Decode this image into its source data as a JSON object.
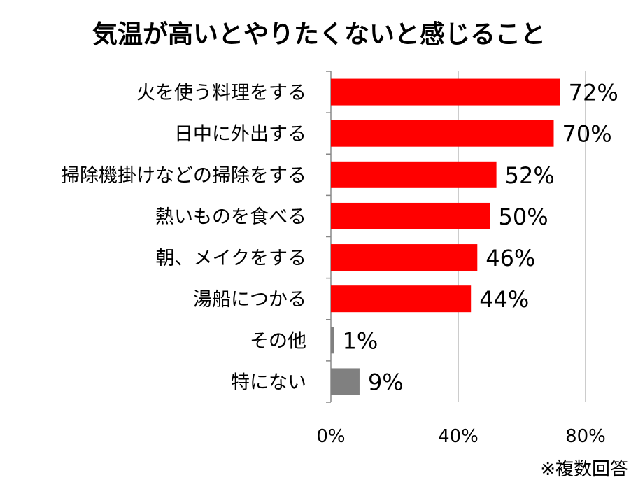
{
  "chart_data": {
    "type": "bar",
    "orientation": "horizontal",
    "title": "気温が高いとやりたくないと感じること",
    "categories": [
      "火を使う料理をする",
      "日中に外出する",
      "掃除機掛けなどの掃除をする",
      "熱いものを食べる",
      "朝、メイクをする",
      "湯船につかる",
      "その他",
      "特にない"
    ],
    "values": [
      72,
      70,
      52,
      50,
      46,
      44,
      1,
      9
    ],
    "value_labels": [
      "72%",
      "70%",
      "52%",
      "50%",
      "46%",
      "44%",
      "1%",
      "9%"
    ],
    "bar_colors": [
      "#ff0000",
      "#ff0000",
      "#ff0000",
      "#ff0000",
      "#ff0000",
      "#ff0000",
      "#808080",
      "#808080"
    ],
    "xlim": [
      0,
      80
    ],
    "xticks": [
      0,
      40,
      80
    ],
    "xtick_labels": [
      "0%",
      "40%",
      "80%"
    ],
    "grid": "vertical",
    "note": "※複数回答"
  }
}
